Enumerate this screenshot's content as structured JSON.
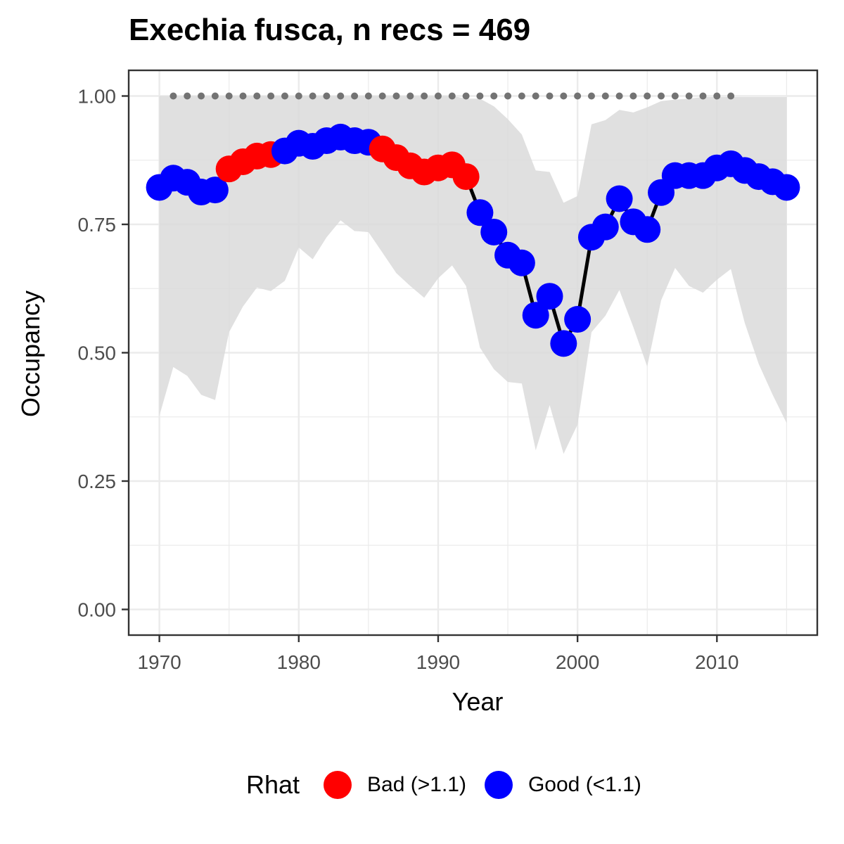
{
  "chart_data": {
    "type": "line",
    "title": "Exechia fusca, n recs = 469",
    "xlabel": "Year",
    "ylabel": "Occupancy",
    "xlim": [
      1967.8,
      2017.2
    ],
    "ylim": [
      -0.05,
      1.05
    ],
    "x_ticks": [
      {
        "value": 1970,
        "label": "1970"
      },
      {
        "value": 1980,
        "label": "1980"
      },
      {
        "value": 1990,
        "label": "1990"
      },
      {
        "value": 2000,
        "label": "2000"
      },
      {
        "value": 2010,
        "label": "2010"
      }
    ],
    "y_ticks": [
      {
        "value": 0,
        "label": "0.00"
      },
      {
        "value": 0.25,
        "label": "0.25"
      },
      {
        "value": 0.5,
        "label": "0.50"
      },
      {
        "value": 0.75,
        "label": "0.75"
      },
      {
        "value": 1,
        "label": "1.00"
      }
    ],
    "grid": true,
    "legend": {
      "title": "Rhat",
      "position": "bottom",
      "items": [
        {
          "label": "Bad (>1.1)",
          "color": "#ff0000"
        },
        {
          "label": "Good (<1.1)",
          "color": "#0000ff"
        }
      ]
    },
    "colors": {
      "bad": "#ff0000",
      "good": "#0000ff",
      "band": "#d9d9d9",
      "line": "#000000",
      "dots": "#737373"
    },
    "x": [
      1970,
      1971,
      1972,
      1973,
      1974,
      1975,
      1976,
      1977,
      1978,
      1979,
      1980,
      1981,
      1982,
      1983,
      1984,
      1985,
      1986,
      1987,
      1988,
      1989,
      1990,
      1991,
      1992,
      1993,
      1994,
      1995,
      1996,
      1997,
      1998,
      1999,
      2000,
      2001,
      2002,
      2003,
      2004,
      2005,
      2006,
      2007,
      2008,
      2009,
      2010,
      2011,
      2012,
      2013,
      2014,
      2015
    ],
    "occupancy": [
      0.822,
      0.84,
      0.832,
      0.813,
      0.817,
      0.858,
      0.872,
      0.883,
      0.886,
      0.893,
      0.908,
      0.902,
      0.913,
      0.92,
      0.913,
      0.91,
      0.897,
      0.88,
      0.864,
      0.852,
      0.86,
      0.866,
      0.843,
      0.773,
      0.735,
      0.69,
      0.675,
      0.573,
      0.61,
      0.518,
      0.565,
      0.725,
      0.745,
      0.8,
      0.755,
      0.74,
      0.812,
      0.845,
      0.845,
      0.845,
      0.86,
      0.868,
      0.855,
      0.843,
      0.833,
      0.822
    ],
    "rhat": [
      "good",
      "good",
      "good",
      "good",
      "good",
      "bad",
      "bad",
      "bad",
      "bad",
      "good",
      "good",
      "good",
      "good",
      "good",
      "good",
      "good",
      "bad",
      "bad",
      "bad",
      "bad",
      "bad",
      "bad",
      "bad",
      "good",
      "good",
      "good",
      "good",
      "good",
      "good",
      "good",
      "good",
      "good",
      "good",
      "good",
      "good",
      "good",
      "good",
      "good",
      "good",
      "good",
      "good",
      "good",
      "good",
      "good",
      "good",
      "good"
    ],
    "upper": [
      1.0,
      1.0,
      1.0,
      1.0,
      1.0,
      1.0,
      1.0,
      1.0,
      1.0,
      1.0,
      1.0,
      1.0,
      1.0,
      1.0,
      1.0,
      1.0,
      1.0,
      1.0,
      1.0,
      1.0,
      1.0,
      1.0,
      0.995,
      0.995,
      0.98,
      0.955,
      0.925,
      0.855,
      0.852,
      0.792,
      0.805,
      0.945,
      0.953,
      0.973,
      0.968,
      0.978,
      0.99,
      0.993,
      0.995,
      0.998,
      0.998,
      0.998,
      0.998,
      0.998,
      0.998,
      0.998
    ],
    "lower": [
      0.377,
      0.472,
      0.455,
      0.418,
      0.408,
      0.54,
      0.59,
      0.627,
      0.62,
      0.64,
      0.705,
      0.682,
      0.725,
      0.758,
      0.737,
      0.735,
      0.695,
      0.655,
      0.63,
      0.607,
      0.645,
      0.67,
      0.63,
      0.51,
      0.468,
      0.443,
      0.44,
      0.31,
      0.398,
      0.303,
      0.36,
      0.54,
      0.572,
      0.622,
      0.55,
      0.473,
      0.602,
      0.665,
      0.63,
      0.617,
      0.642,
      0.663,
      0.558,
      0.478,
      0.418,
      0.363
    ],
    "dots_top": {
      "y": 1.0,
      "x_start": 1971,
      "x_end": 2011,
      "step": 1
    }
  }
}
